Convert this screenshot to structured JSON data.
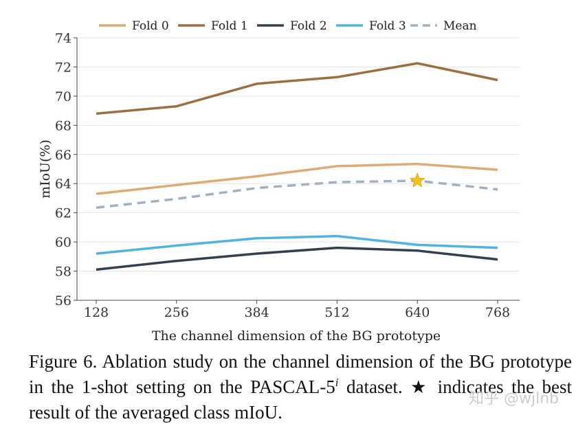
{
  "chart_data": {
    "type": "line",
    "x": [
      128,
      256,
      384,
      512,
      640,
      768
    ],
    "xticklabels": [
      "128",
      "256",
      "384",
      "512",
      "640",
      "768"
    ],
    "series": [
      {
        "name": "Fold 0",
        "values": [
          63.3,
          63.9,
          64.5,
          65.2,
          65.35,
          64.95
        ],
        "color": "#deab74",
        "style": "solid"
      },
      {
        "name": "Fold 1",
        "values": [
          68.8,
          69.3,
          70.85,
          71.3,
          72.25,
          71.1
        ],
        "color": "#9c6f3e",
        "style": "solid"
      },
      {
        "name": "Fold 2",
        "values": [
          58.1,
          58.7,
          59.2,
          59.6,
          59.4,
          58.8
        ],
        "color": "#34404d",
        "style": "solid"
      },
      {
        "name": "Fold 3",
        "values": [
          59.2,
          59.75,
          60.25,
          60.4,
          59.8,
          59.6
        ],
        "color": "#50b4e0",
        "style": "solid"
      },
      {
        "name": "Mean",
        "values": [
          62.35,
          62.95,
          63.7,
          64.1,
          64.2,
          63.6
        ],
        "color": "#9fb1c3",
        "style": "dashed"
      }
    ],
    "best_marker": {
      "series": "Mean",
      "x": 640,
      "value": 64.2,
      "color": "#f6c01a"
    },
    "ylim": [
      56,
      74
    ],
    "yticks": [
      56,
      58,
      60,
      62,
      64,
      66,
      68,
      70,
      72,
      74
    ],
    "xlabel": "The channel dimension of the BG prototype",
    "ylabel": "mIoU(%)",
    "legend": "top"
  },
  "caption": {
    "part1": "Figure 6. Ablation study on the channel dimension of the BG prototype in the 1-shot setting on the PASCAL-5",
    "sup": "i",
    "part2": " dataset. ",
    "star": "★",
    "part3": " indicates the best result of the averaged class mIoU."
  },
  "watermark": "知乎 @wjlnb"
}
